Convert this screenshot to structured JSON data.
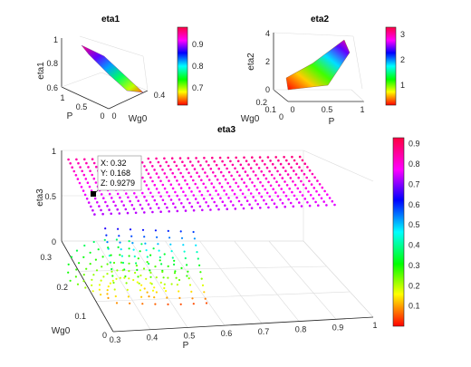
{
  "chart_data": [
    {
      "type": "surface",
      "title": "eta1",
      "xlabel": "P",
      "ylabel": "Wg0",
      "zlabel": "eta1",
      "x_ticks": [
        "1",
        "0.5",
        "0"
      ],
      "y_ticks": [
        "0",
        "0.2",
        "0.4"
      ],
      "z_ticks": [
        "0.6",
        "0.8",
        "1"
      ],
      "xlim": [
        0,
        1
      ],
      "ylim": [
        0,
        0.4
      ],
      "zlim": [
        0.6,
        1
      ],
      "surface_corners": [
        {
          "P": 1,
          "Wg0": 0,
          "eta1": 0.99
        },
        {
          "P": 1,
          "Wg0": 0.4,
          "eta1": 0.9
        },
        {
          "P": 0,
          "Wg0": 0,
          "eta1": 0.8
        },
        {
          "P": 0,
          "Wg0": 0.4,
          "eta1": 0.62
        }
      ],
      "colorbar_ticks": [
        "0.7",
        "0.8",
        "0.9"
      ],
      "colorbar_range": [
        0.62,
        1.0
      ],
      "colormap": "hsv"
    },
    {
      "type": "surface",
      "title": "eta2",
      "xlabel": "P",
      "ylabel": "Wg0",
      "zlabel": "eta2",
      "x_ticks": [
        "0",
        "0.5",
        "1"
      ],
      "y_ticks": [
        "0",
        "0.1",
        "0.2"
      ],
      "z_ticks": [
        "0",
        "2",
        "4"
      ],
      "xlim": [
        0,
        1
      ],
      "ylim": [
        0,
        0.2
      ],
      "zlim": [
        0,
        4
      ],
      "surface_corners": [
        {
          "P": 0,
          "Wg0": 0.2,
          "eta2": 0.3
        },
        {
          "P": 1,
          "Wg0": 0.2,
          "eta2": 1.5
        },
        {
          "P": 0,
          "Wg0": 0,
          "eta2": 0.3
        },
        {
          "P": 1,
          "Wg0": 0,
          "eta2": 3.4
        }
      ],
      "colorbar_ticks": [
        "1",
        "2",
        "3"
      ],
      "colorbar_range": [
        0.3,
        3.4
      ],
      "colormap": "hsv"
    },
    {
      "type": "scatter",
      "title": "eta3",
      "xlabel": "P",
      "ylabel": "Wg0",
      "zlabel": "eta3",
      "x_ticks": [
        "0.3",
        "0.4",
        "0.5",
        "0.6",
        "0.7",
        "0.8",
        "0.9",
        "1"
      ],
      "y_ticks": [
        "0",
        "0.1",
        "0.2",
        "0.3"
      ],
      "z_ticks": [
        "0",
        "0.5",
        "1"
      ],
      "xlim": [
        0.3,
        1
      ],
      "ylim": [
        0,
        0.3
      ],
      "zlim": [
        0,
        1
      ],
      "colorbar_ticks": [
        "0.1",
        "0.2",
        "0.3",
        "0.4",
        "0.5",
        "0.6",
        "0.7",
        "0.8",
        "0.9"
      ],
      "colorbar_range": [
        0,
        0.93
      ],
      "colormap": "hsv",
      "plateau_curves": {
        "P_start": 0.32,
        "P_end": 0.99,
        "curve_count": 30,
        "Wg0_range": [
          0.15,
          0.3
        ],
        "eta3_range": [
          0.75,
          0.93
        ]
      },
      "datatip": {
        "lines": [
          "X: 0.32",
          "Y: 0.168",
          "Z: 0.9279"
        ],
        "x": 0.32,
        "y": 0.168,
        "z": 0.9279
      }
    }
  ]
}
